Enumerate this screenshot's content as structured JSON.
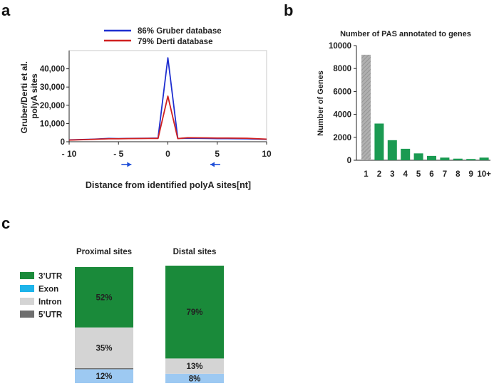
{
  "figure": {
    "panel_labels": [
      "a",
      "b",
      "c"
    ]
  },
  "chart_data": [
    {
      "type": "line",
      "panel": "a",
      "title": "",
      "xlabel": "Distance from identified polyA sites[nt]",
      "ylabel": "Gruber/Derti et al. polyA sites",
      "ylabel_lines": [
        "Gruber/Derti et al.",
        "polyA sites"
      ],
      "xlim": [
        -10,
        10
      ],
      "ylim": [
        0,
        50000
      ],
      "x_ticks": [
        -10,
        -5,
        0,
        5,
        10
      ],
      "x_tick_labels": [
        "- 10",
        "- 5",
        "0",
        "5",
        "10"
      ],
      "y_ticks": [
        0,
        10000,
        20000,
        30000,
        40000
      ],
      "y_tick_labels": [
        "0",
        "10,000",
        "20,000",
        "30,000",
        "40,000"
      ],
      "legend_position": "top-center",
      "arrow_annotations": [
        {
          "x": -4.2,
          "direction": "right",
          "color": "#1f4fd8"
        },
        {
          "x": 4.8,
          "direction": "left",
          "color": "#1f4fd8"
        }
      ],
      "series": [
        {
          "name": "86% Gruber database",
          "color": "#1f2fd0",
          "x": [
            -10,
            -8,
            -6,
            -5,
            -4,
            -2,
            -1,
            0,
            1,
            2,
            4,
            5,
            6,
            8,
            10
          ],
          "y": [
            1000,
            1300,
            1800,
            1700,
            1800,
            1900,
            2000,
            46000,
            1800,
            1900,
            1800,
            1700,
            1700,
            1600,
            1300
          ]
        },
        {
          "name": "79% Derti database",
          "color": "#d02020",
          "x": [
            -10,
            -8,
            -6,
            -5,
            -4,
            -2,
            -1,
            0,
            1,
            2,
            4,
            5,
            6,
            8,
            10
          ],
          "y": [
            900,
            1200,
            1600,
            1600,
            1700,
            1800,
            1800,
            25000,
            1700,
            2200,
            2100,
            2000,
            2000,
            1900,
            1400
          ]
        }
      ]
    },
    {
      "type": "bar",
      "panel": "b",
      "title": "Number of PAS annotated to genes",
      "xlabel": "",
      "ylabel": "Number of Genes",
      "ylim": [
        0,
        10000
      ],
      "y_ticks": [
        0,
        2000,
        4000,
        6000,
        8000,
        10000
      ],
      "y_tick_labels": [
        "0",
        "2000",
        "4000",
        "6000",
        "8000",
        "10000"
      ],
      "categories": [
        "1",
        "2",
        "3",
        "4",
        "5",
        "6",
        "7",
        "8",
        "9",
        "10+"
      ],
      "values": [
        9200,
        3200,
        1750,
        1000,
        600,
        380,
        230,
        140,
        110,
        230
      ],
      "colors": [
        "#a8a8a8",
        "#1b9a52",
        "#1b9a52",
        "#1b9a52",
        "#1b9a52",
        "#1b9a52",
        "#1b9a52",
        "#1b9a52",
        "#1b9a52",
        "#1b9a52"
      ],
      "hatched_categories": [
        "1"
      ]
    },
    {
      "type": "bar",
      "subtype": "stacked-100",
      "panel": "c",
      "title": "",
      "categories": [
        "Proximal sites",
        "Distal sites"
      ],
      "legend": [
        {
          "name": "3’UTR",
          "color": "#1a8a3a"
        },
        {
          "name": "Exon",
          "color": "#1eb4ea"
        },
        {
          "name": "Intron",
          "color": "#d4d4d4"
        },
        {
          "name": "5’UTR",
          "color": "#6f6f6f"
        }
      ],
      "stack_order_bottom_to_top": [
        "Exon (light)",
        "5’UTR",
        "Intron",
        "3’UTR"
      ],
      "series": [
        {
          "name": "3’UTR",
          "color": "#1a8a3a",
          "values": [
            52,
            79
          ],
          "labels": [
            "52%",
            "79%"
          ]
        },
        {
          "name": "Intron",
          "color": "#d4d4d4",
          "values": [
            35,
            13
          ],
          "labels": [
            "35%",
            "13%"
          ]
        },
        {
          "name": "5’UTR",
          "color": "#6f6f6f",
          "values": [
            1,
            0
          ],
          "labels": [
            "",
            ""
          ]
        },
        {
          "name": "Exon",
          "color": "#9dc9f2",
          "values": [
            12,
            8
          ],
          "labels": [
            "12%",
            "8%"
          ]
        }
      ]
    }
  ]
}
